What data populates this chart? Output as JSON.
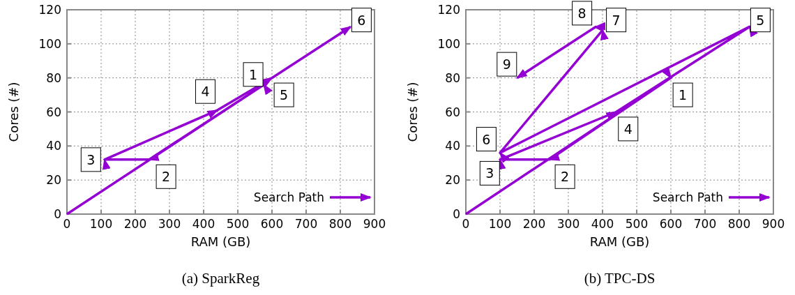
{
  "chart_data": [
    {
      "type": "line",
      "title": "(a) SparkReg",
      "xlabel": "RAM (GB)",
      "ylabel": "Cores (#)",
      "xlim": [
        0,
        900
      ],
      "ylim": [
        0,
        120
      ],
      "xticks": [
        0,
        100,
        200,
        300,
        400,
        500,
        600,
        700,
        800,
        900
      ],
      "yticks": [
        0,
        20,
        40,
        60,
        80,
        100,
        120
      ],
      "grid": true,
      "legend": "bottom right",
      "series": [
        {
          "name": "Search Path",
          "color": "#9400d3",
          "x": [
            0,
            576,
            240,
            110,
            440,
            600,
            830
          ],
          "values": [
            0,
            76,
            32,
            32,
            61,
            80,
            110
          ]
        }
      ],
      "annotations": [
        {
          "text": "1",
          "x": 545,
          "y": 82
        },
        {
          "text": "2",
          "x": 290,
          "y": 22
        },
        {
          "text": "3",
          "x": 70,
          "y": 32
        },
        {
          "text": "4",
          "x": 405,
          "y": 72
        },
        {
          "text": "5",
          "x": 635,
          "y": 70
        },
        {
          "text": "6",
          "x": 862,
          "y": 114
        }
      ]
    },
    {
      "type": "line",
      "title": "(b) TPC-DS",
      "xlabel": "RAM (GB)",
      "ylabel": "Cores (#)",
      "xlim": [
        0,
        900
      ],
      "ylim": [
        0,
        120
      ],
      "xticks": [
        0,
        100,
        200,
        300,
        400,
        500,
        600,
        700,
        800,
        900
      ],
      "yticks": [
        0,
        20,
        40,
        60,
        80,
        100,
        120
      ],
      "grid": true,
      "legend": "bottom right",
      "series": [
        {
          "name": "Search Path",
          "color": "#9400d3",
          "x": [
            0,
            600,
            245,
            100,
            440,
            830,
            100,
            400,
            380,
            150
          ],
          "values": [
            0,
            80,
            32,
            32,
            60,
            110,
            36,
            108,
            110,
            80
          ]
        }
      ],
      "annotations": [
        {
          "text": "1",
          "x": 635,
          "y": 70
        },
        {
          "text": "2",
          "x": 290,
          "y": 22
        },
        {
          "text": "3",
          "x": 70,
          "y": 24
        },
        {
          "text": "4",
          "x": 475,
          "y": 50
        },
        {
          "text": "5",
          "x": 862,
          "y": 114
        },
        {
          "text": "6",
          "x": 60,
          "y": 44
        },
        {
          "text": "7",
          "x": 440,
          "y": 114
        },
        {
          "text": "8",
          "x": 340,
          "y": 118
        },
        {
          "text": "9",
          "x": 120,
          "y": 88
        }
      ]
    }
  ]
}
